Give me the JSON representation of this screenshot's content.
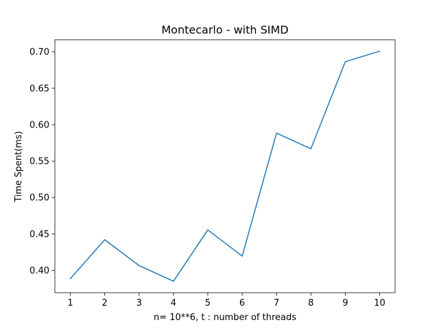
{
  "chart_data": {
    "type": "line",
    "title": "Montecarlo - with SIMD",
    "xlabel": "n= 10**6, t : number of threads",
    "ylabel": "Time Spent(ms)",
    "x": [
      1,
      2,
      3,
      4,
      5,
      6,
      7,
      8,
      9,
      10
    ],
    "series": [
      {
        "values": [
          0.3885,
          0.442,
          0.4065,
          0.385,
          0.4555,
          0.4195,
          0.5885,
          0.567,
          0.6865,
          0.701
        ],
        "color": "#1f77b4"
      }
    ],
    "xticks": [
      "1",
      "2",
      "3",
      "4",
      "5",
      "6",
      "7",
      "8",
      "9",
      "10"
    ],
    "yticks": [
      "0.40",
      "0.45",
      "0.50",
      "0.55",
      "0.60",
      "0.65",
      "0.70"
    ],
    "xlim": [
      0.55,
      10.45
    ],
    "ylim": [
      0.3693,
      0.7167
    ],
    "grid": false,
    "legend": "none"
  }
}
